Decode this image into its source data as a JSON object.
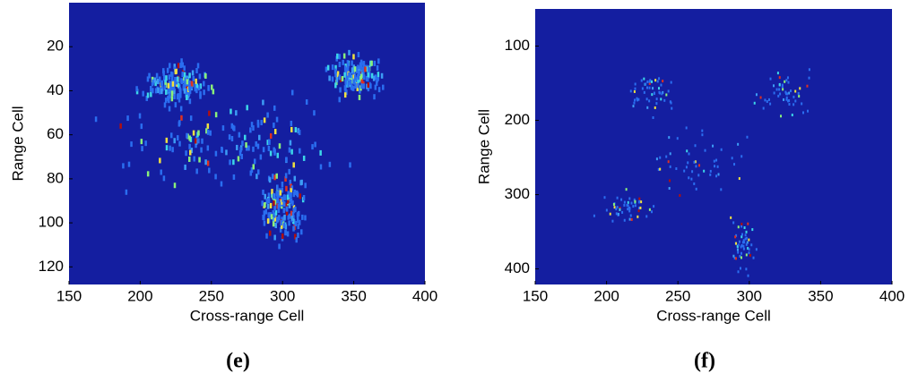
{
  "chart_data": [
    {
      "type": "heatmap",
      "xlabel": "Cross-range Cell",
      "ylabel": "Range Cell",
      "caption": "(e)",
      "xlim": [
        150,
        400
      ],
      "ylim": [
        128,
        0
      ],
      "xticks": [
        150,
        200,
        250,
        300,
        350,
        400
      ],
      "yticks": [
        20,
        40,
        60,
        80,
        100,
        120
      ],
      "background": "#141ea0"
    },
    {
      "type": "heatmap",
      "xlabel": "Cross-range Cell",
      "ylabel": "Range Cell",
      "caption": "(f)",
      "xlim": [
        150,
        400
      ],
      "ylim": [
        421,
        50
      ],
      "xticks": [
        150,
        200,
        250,
        300,
        350,
        400
      ],
      "yticks": [
        100,
        200,
        300,
        400
      ],
      "background": "#141ea0"
    }
  ]
}
